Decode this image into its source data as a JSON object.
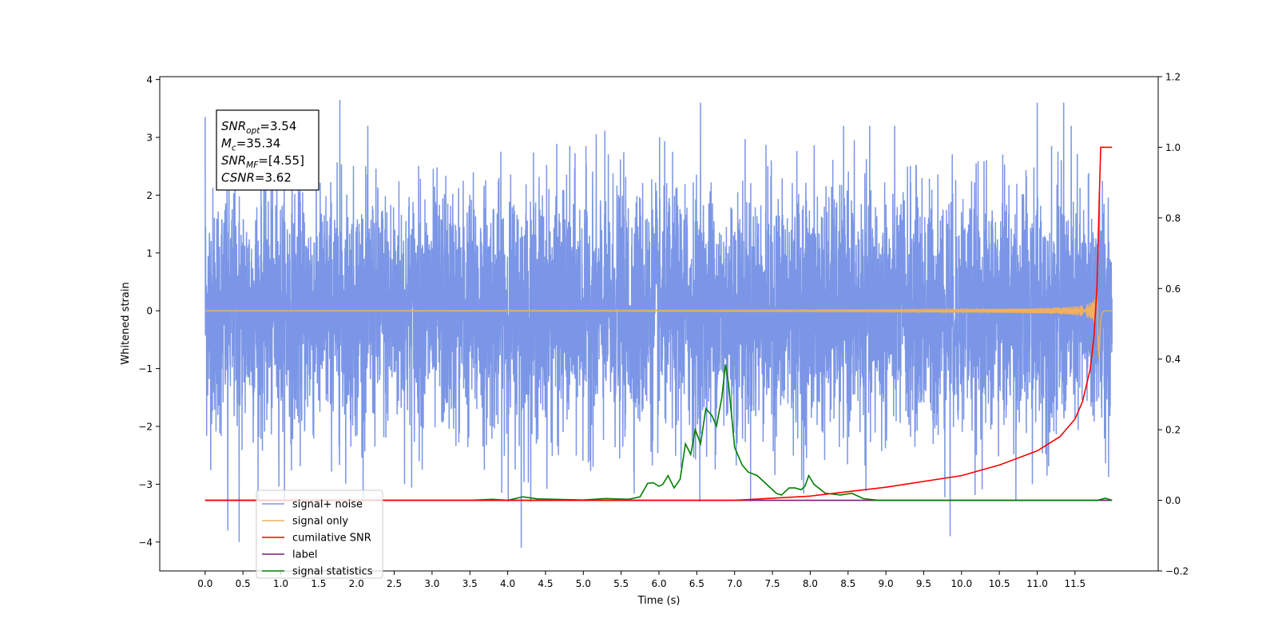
{
  "chart_data": {
    "type": "line",
    "xlabel": "Time (s)",
    "ylabel": "Whitened strain",
    "ylabel_right": "",
    "xlim": [
      -0.6,
      12.6
    ],
    "ylim": [
      -4.5,
      4.05
    ],
    "ylim_right": [
      -0.2,
      1.2
    ],
    "x_ticks": [
      0.0,
      0.5,
      1.0,
      1.5,
      2.0,
      2.5,
      3.0,
      3.5,
      4.0,
      4.5,
      5.0,
      5.5,
      6.0,
      6.5,
      7.0,
      7.5,
      8.0,
      8.5,
      9.0,
      9.5,
      10.0,
      10.5,
      11.0,
      11.5
    ],
    "x_tick_labels": [
      "0.0",
      "0.5",
      "1.0",
      "1.5",
      "2.0",
      "2.5",
      "3.0",
      "3.5",
      "4.0",
      "4.5",
      "5.0",
      "5.5",
      "6.0",
      "6.5",
      "7.0",
      "7.5",
      "8.0",
      "8.5",
      "9.0",
      "9.5",
      "10.0",
      "10.5",
      "11.0",
      "11.5"
    ],
    "y_ticks": [
      -4,
      -3,
      -2,
      -1,
      0,
      1,
      2,
      3,
      4
    ],
    "y_tick_labels": [
      "−4",
      "−3",
      "−2",
      "−1",
      "0",
      "1",
      "2",
      "3",
      "4"
    ],
    "y_right_ticks": [
      -0.2,
      0.0,
      0.2,
      0.4,
      0.6,
      0.8,
      1.0,
      1.2
    ],
    "y_right_tick_labels": [
      "−0.2",
      "0.0",
      "0.2",
      "0.4",
      "0.6",
      "0.8",
      "1.0",
      "1.2"
    ],
    "grid": false,
    "legend_position": "lower-left",
    "annotation": [
      {
        "sym": "SNR",
        "sub": "opt",
        "value": "=3.54"
      },
      {
        "sym": "M",
        "sub": "c",
        "value": "=35.34"
      },
      {
        "sym": "SNR",
        "sub": "MF",
        "value": "=[4.55]"
      },
      {
        "sym": "CSNR",
        "sub": "",
        "value": "=3.62"
      }
    ],
    "series": [
      {
        "name": "signal+ noise",
        "axis": "left",
        "color": "#7b96e6",
        "description_values": {
          "x_range": [
            0.0,
            11.99
          ],
          "envelope_low": -2.0,
          "envelope_high": 2.0,
          "peaks": [
            {
              "x": 0.0,
              "y": 3.35
            },
            {
              "x": 0.45,
              "y": -4.0
            },
            {
              "x": 1.78,
              "y": 3.65
            },
            {
              "x": 4.18,
              "y": -4.1
            },
            {
              "x": 6.55,
              "y": 3.6
            },
            {
              "x": 9.85,
              "y": -3.9
            },
            {
              "x": 11.35,
              "y": 3.6
            },
            {
              "x": 11.0,
              "y": 3.6
            },
            {
              "x": 0.3,
              "y": -3.8
            }
          ]
        }
      },
      {
        "name": "signal only",
        "axis": "left",
        "color": "#f0b060",
        "chirp": {
          "x_start": 0.0,
          "x_merger": 11.82,
          "x_end": 11.99,
          "amp_max": 1.1,
          "amp_min_peak": -0.9
        }
      },
      {
        "name": "cumilative SNR",
        "axis": "right",
        "color": "#ff0000",
        "points": [
          [
            0.0,
            0.0
          ],
          [
            7.0,
            0.0
          ],
          [
            8.0,
            0.012
          ],
          [
            9.0,
            0.037
          ],
          [
            10.0,
            0.07
          ],
          [
            10.5,
            0.1
          ],
          [
            11.0,
            0.14
          ],
          [
            11.3,
            0.18
          ],
          [
            11.5,
            0.23
          ],
          [
            11.6,
            0.28
          ],
          [
            11.7,
            0.37
          ],
          [
            11.75,
            0.46
          ],
          [
            11.79,
            0.6
          ],
          [
            11.82,
            0.85
          ],
          [
            11.84,
            1.0
          ],
          [
            11.99,
            1.0
          ]
        ]
      },
      {
        "name": "label",
        "axis": "right",
        "color": "#7b1a7b",
        "points": [
          [
            0.0,
            0.0
          ],
          [
            11.99,
            0.0
          ]
        ]
      },
      {
        "name": "signal statistics",
        "axis": "right",
        "color": "#008000",
        "points": [
          [
            0.0,
            0.0
          ],
          [
            3.5,
            0.0
          ],
          [
            3.8,
            0.003
          ],
          [
            4.0,
            0.0
          ],
          [
            4.2,
            0.01
          ],
          [
            4.4,
            0.004
          ],
          [
            5.0,
            0.001
          ],
          [
            5.3,
            0.005
          ],
          [
            5.6,
            0.003
          ],
          [
            5.75,
            0.01
          ],
          [
            5.85,
            0.048
          ],
          [
            5.92,
            0.05
          ],
          [
            6.0,
            0.04
          ],
          [
            6.05,
            0.045
          ],
          [
            6.12,
            0.07
          ],
          [
            6.2,
            0.035
          ],
          [
            6.28,
            0.06
          ],
          [
            6.35,
            0.16
          ],
          [
            6.42,
            0.13
          ],
          [
            6.48,
            0.2
          ],
          [
            6.55,
            0.16
          ],
          [
            6.62,
            0.26
          ],
          [
            6.7,
            0.24
          ],
          [
            6.76,
            0.21
          ],
          [
            6.83,
            0.29
          ],
          [
            6.88,
            0.385
          ],
          [
            6.92,
            0.33
          ],
          [
            7.0,
            0.15
          ],
          [
            7.1,
            0.1
          ],
          [
            7.18,
            0.08
          ],
          [
            7.3,
            0.07
          ],
          [
            7.45,
            0.04
          ],
          [
            7.55,
            0.02
          ],
          [
            7.62,
            0.015
          ],
          [
            7.72,
            0.035
          ],
          [
            7.8,
            0.035
          ],
          [
            7.88,
            0.03
          ],
          [
            7.93,
            0.04
          ],
          [
            7.98,
            0.07
          ],
          [
            8.05,
            0.045
          ],
          [
            8.2,
            0.02
          ],
          [
            8.4,
            0.015
          ],
          [
            8.55,
            0.02
          ],
          [
            8.7,
            0.005
          ],
          [
            8.9,
            0.0
          ],
          [
            9.5,
            0.0
          ],
          [
            11.8,
            0.0
          ],
          [
            11.9,
            0.006
          ],
          [
            11.99,
            0.0
          ]
        ]
      }
    ]
  }
}
